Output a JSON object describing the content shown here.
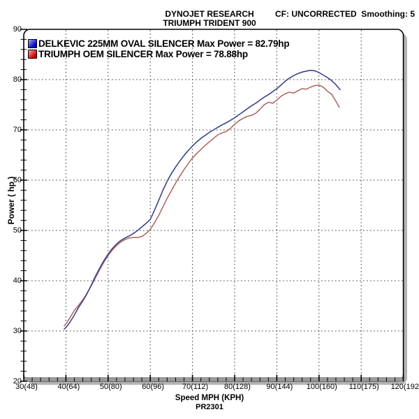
{
  "chart_data": {
    "type": "line",
    "title": "DYNOJET RESEARCH",
    "subtitle": "TRIUMPH TRIDENT 900",
    "annotation": "CF: UNCORRECTED  Smoothing: 5",
    "xlabel": "Speed MPH (KPH)",
    "ylabel": "Power ( hp )",
    "footer": "PR2301",
    "xlim": [
      30,
      120
    ],
    "ylim": [
      20,
      90
    ],
    "x_major_step": 10,
    "x_minor_step": 2,
    "y_major_step": 10,
    "y_minor_step": 2,
    "grid": "dotted-at-major-ticks",
    "legend_position": "top-left-inside",
    "frame_style": "rounded-black-border-with-gray-drop-shadow",
    "x_ticks": [
      {
        "mph": 30,
        "label": "30(48)"
      },
      {
        "mph": 40,
        "label": "40(64)"
      },
      {
        "mph": 50,
        "label": "50(80)"
      },
      {
        "mph": 60,
        "label": "60(96)"
      },
      {
        "mph": 70,
        "label": "70(112)"
      },
      {
        "mph": 80,
        "label": "80(128)"
      },
      {
        "mph": 90,
        "label": "90(144)"
      },
      {
        "mph": 100,
        "label": "100(160)"
      },
      {
        "mph": 110,
        "label": "110(175)"
      },
      {
        "mph": 120,
        "label": "120(192)"
      }
    ],
    "y_ticks": [
      20,
      30,
      40,
      50,
      60,
      70,
      80,
      90
    ],
    "series": [
      {
        "name": "DELKEVIC 225MM OVAL SILENCER",
        "legend_label": "DELKEVIC 225MM OVAL SILENCER Max Power = 82.79hp",
        "max_power_hp": 82.79,
        "color": "#3a4486",
        "swatch": {
          "from": "#9fadfa",
          "to": "#0000c4"
        },
        "points": [
          [
            39.6,
            30.4
          ],
          [
            40,
            30.7
          ],
          [
            41,
            31.8
          ],
          [
            42,
            33.2
          ],
          [
            43,
            34.7
          ],
          [
            44,
            36.0
          ],
          [
            45,
            37.4
          ],
          [
            46,
            39.1
          ],
          [
            47,
            40.9
          ],
          [
            48,
            42.5
          ],
          [
            49,
            44.0
          ],
          [
            50,
            45.3
          ],
          [
            51,
            46.4
          ],
          [
            52,
            47.3
          ],
          [
            53,
            48.0
          ],
          [
            54,
            48.5
          ],
          [
            55,
            48.9
          ],
          [
            56,
            49.4
          ],
          [
            57,
            50.0
          ],
          [
            58,
            50.7
          ],
          [
            59,
            51.4
          ],
          [
            60,
            52.2
          ],
          [
            61,
            54.0
          ],
          [
            62,
            56.0
          ],
          [
            63,
            58.0
          ],
          [
            64,
            59.8
          ],
          [
            65,
            61.3
          ],
          [
            66,
            62.6
          ],
          [
            67,
            63.8
          ],
          [
            68,
            64.9
          ],
          [
            69,
            65.9
          ],
          [
            70,
            66.8
          ],
          [
            71,
            67.6
          ],
          [
            72,
            68.3
          ],
          [
            73,
            68.9
          ],
          [
            74,
            69.5
          ],
          [
            75,
            70.0
          ],
          [
            76,
            70.5
          ],
          [
            77,
            71.0
          ],
          [
            78,
            71.4
          ],
          [
            79,
            71.9
          ],
          [
            80,
            72.4
          ],
          [
            81,
            73.0
          ],
          [
            82,
            73.6
          ],
          [
            83,
            74.2
          ],
          [
            84,
            74.8
          ],
          [
            85,
            75.3
          ],
          [
            86,
            75.9
          ],
          [
            87,
            76.5
          ],
          [
            88,
            77.0
          ],
          [
            89,
            77.6
          ],
          [
            90,
            78.2
          ],
          [
            91,
            78.9
          ],
          [
            92,
            79.7
          ],
          [
            93,
            80.3
          ],
          [
            94,
            80.8
          ],
          [
            95,
            81.2
          ],
          [
            96,
            81.5
          ],
          [
            97,
            81.7
          ],
          [
            98,
            81.85
          ],
          [
            99,
            81.75
          ],
          [
            100,
            81.4
          ],
          [
            101,
            80.9
          ],
          [
            102,
            80.4
          ],
          [
            103,
            79.8
          ],
          [
            104,
            79.0
          ],
          [
            105,
            78.0
          ]
        ]
      },
      {
        "name": "TRIUMPH OEM SILENCER",
        "legend_label": "TRIUMPH OEM SILENCER Max Power = 78.88hp",
        "max_power_hp": 78.88,
        "color": "#b06a64",
        "swatch": {
          "from": "#ffa0a0",
          "to": "#d40000"
        },
        "points": [
          [
            39.6,
            31.0
          ],
          [
            40,
            31.4
          ],
          [
            41,
            32.7
          ],
          [
            42,
            34.1
          ],
          [
            43,
            35.1
          ],
          [
            44,
            36.2
          ],
          [
            45,
            37.5
          ],
          [
            46,
            39.0
          ],
          [
            47,
            40.6
          ],
          [
            48,
            42.2
          ],
          [
            49,
            43.7
          ],
          [
            50,
            45.0
          ],
          [
            51,
            46.1
          ],
          [
            52,
            47.0
          ],
          [
            53,
            47.7
          ],
          [
            54,
            48.2
          ],
          [
            55,
            48.5
          ],
          [
            56,
            48.6
          ],
          [
            57,
            48.6
          ],
          [
            58,
            48.8
          ],
          [
            59,
            49.4
          ],
          [
            60,
            50.2
          ],
          [
            61,
            51.5
          ],
          [
            62,
            53.0
          ],
          [
            63,
            54.7
          ],
          [
            64,
            56.4
          ],
          [
            65,
            57.9
          ],
          [
            66,
            59.4
          ],
          [
            67,
            60.8
          ],
          [
            68,
            62.1
          ],
          [
            69,
            63.3
          ],
          [
            70,
            64.4
          ],
          [
            71,
            65.3
          ],
          [
            72,
            66.1
          ],
          [
            73,
            66.9
          ],
          [
            74,
            67.6
          ],
          [
            75,
            68.3
          ],
          [
            76,
            69.0
          ],
          [
            77,
            69.4
          ],
          [
            78,
            69.7
          ],
          [
            79,
            70.3
          ],
          [
            80,
            71.1
          ],
          [
            81,
            71.8
          ],
          [
            82,
            72.3
          ],
          [
            83,
            72.7
          ],
          [
            84,
            72.9
          ],
          [
            85,
            73.3
          ],
          [
            86,
            74.1
          ],
          [
            87,
            75.0
          ],
          [
            88,
            75.5
          ],
          [
            89,
            75.3
          ],
          [
            90,
            75.9
          ],
          [
            91,
            76.7
          ],
          [
            92,
            77.2
          ],
          [
            93,
            77.5
          ],
          [
            94,
            77.3
          ],
          [
            95,
            77.8
          ],
          [
            96,
            78.2
          ],
          [
            97,
            78.1
          ],
          [
            98,
            78.5
          ],
          [
            99,
            78.8
          ],
          [
            100,
            78.9
          ],
          [
            101,
            78.5
          ],
          [
            102,
            77.7
          ],
          [
            103,
            77.1
          ],
          [
            104,
            75.7
          ],
          [
            104.8,
            74.5
          ]
        ]
      }
    ],
    "style": {
      "grid_color": "#404040",
      "frame_color": "#000000",
      "shadow_color": "#b4b4b4",
      "axis_bar_color": "#999999",
      "background": "#ffffff"
    }
  }
}
